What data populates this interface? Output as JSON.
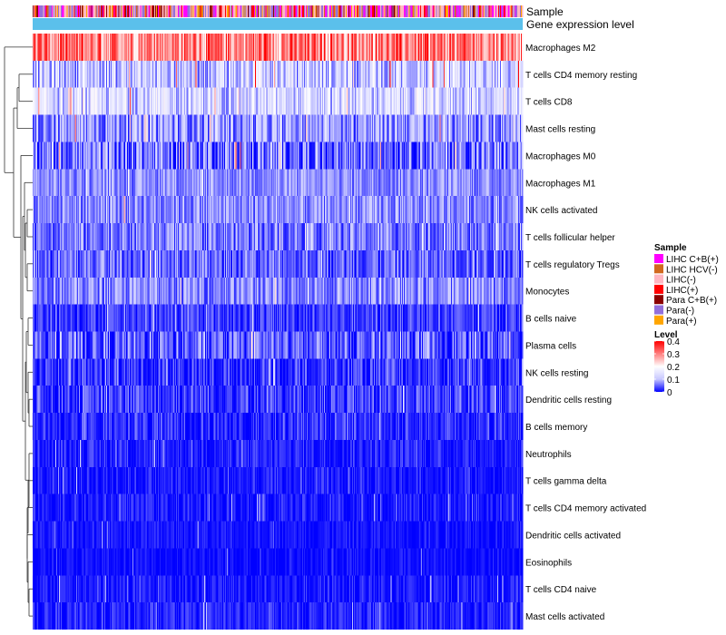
{
  "chart_data": {
    "type": "heatmap",
    "title": "",
    "xlabel": "",
    "ylabel": "",
    "annotation_tracks": [
      "Sample",
      "Gene expression level"
    ],
    "rows": [
      {
        "name": "Macrophages M2",
        "mean": 0.3,
        "spread": 0.1
      },
      {
        "name": "T cells CD4 memory resting",
        "mean": 0.12,
        "spread": 0.09
      },
      {
        "name": "T cells CD8",
        "mean": 0.13,
        "spread": 0.08
      },
      {
        "name": "Mast cells resting",
        "mean": 0.08,
        "spread": 0.07
      },
      {
        "name": "Macrophages M0",
        "mean": 0.06,
        "spread": 0.08
      },
      {
        "name": "Macrophages M1",
        "mean": 0.07,
        "spread": 0.04
      },
      {
        "name": "NK cells activated",
        "mean": 0.07,
        "spread": 0.05
      },
      {
        "name": "T cells follicular helper",
        "mean": 0.06,
        "spread": 0.05
      },
      {
        "name": "T cells regulatory  Tregs",
        "mean": 0.05,
        "spread": 0.05
      },
      {
        "name": "Monocytes",
        "mean": 0.07,
        "spread": 0.05
      },
      {
        "name": "B cells naive",
        "mean": 0.03,
        "spread": 0.04
      },
      {
        "name": "Plasma cells",
        "mean": 0.04,
        "spread": 0.06
      },
      {
        "name": "NK cells resting",
        "mean": 0.02,
        "spread": 0.05
      },
      {
        "name": "Dendritic cells resting",
        "mean": 0.03,
        "spread": 0.05
      },
      {
        "name": "B cells memory",
        "mean": 0.02,
        "spread": 0.04
      },
      {
        "name": "Neutrophils",
        "mean": 0.015,
        "spread": 0.03
      },
      {
        "name": "T cells gamma delta",
        "mean": 0.01,
        "spread": 0.03
      },
      {
        "name": "T cells CD4 memory activated",
        "mean": 0.01,
        "spread": 0.03
      },
      {
        "name": "Dendritic cells activated",
        "mean": 0.01,
        "spread": 0.02
      },
      {
        "name": "Eosinophils",
        "mean": 0.005,
        "spread": 0.02
      },
      {
        "name": "T cells CD4 naive",
        "mean": 0.01,
        "spread": 0.03
      },
      {
        "name": "Mast cells activated",
        "mean": 0.015,
        "spread": 0.03
      }
    ],
    "n_samples": 520,
    "value_range": [
      0,
      0.4
    ],
    "colorscale": [
      {
        "value": 0,
        "color": "#0000FF"
      },
      {
        "value": 0.1,
        "color": "#C8C8FF"
      },
      {
        "value": 0.2,
        "color": "#FFFFFF"
      },
      {
        "value": 0.3,
        "color": "#FF8080"
      },
      {
        "value": 0.4,
        "color": "#FF0000"
      }
    ],
    "sample_legend": {
      "title": "Sample",
      "entries": [
        {
          "label": "LIHC C+B(+)",
          "color": "#FF00FF",
          "share": 0.2
        },
        {
          "label": "LIHC HCV(-)",
          "color": "#D2691E",
          "share": 0.08
        },
        {
          "label": "LIHC(-)",
          "color": "#FFB6C1",
          "share": 0.25
        },
        {
          "label": "LIHC(+)",
          "color": "#FF0000",
          "share": 0.12
        },
        {
          "label": "Para C+B(+)",
          "color": "#8B0000",
          "share": 0.05
        },
        {
          "label": "Para(-)",
          "color": "#9370DB",
          "share": 0.2
        },
        {
          "label": "Para(+)",
          "color": "#FFA500",
          "share": 0.1
        }
      ]
    },
    "gene_expression_track_color": "#5BC0EB",
    "level_legend": {
      "title": "Level",
      "ticks": [
        "0.4",
        "0.3",
        "0.2",
        "0.1",
        "0"
      ],
      "tick_values": [
        0.4,
        0.3,
        0.2,
        0.1,
        0
      ]
    }
  }
}
